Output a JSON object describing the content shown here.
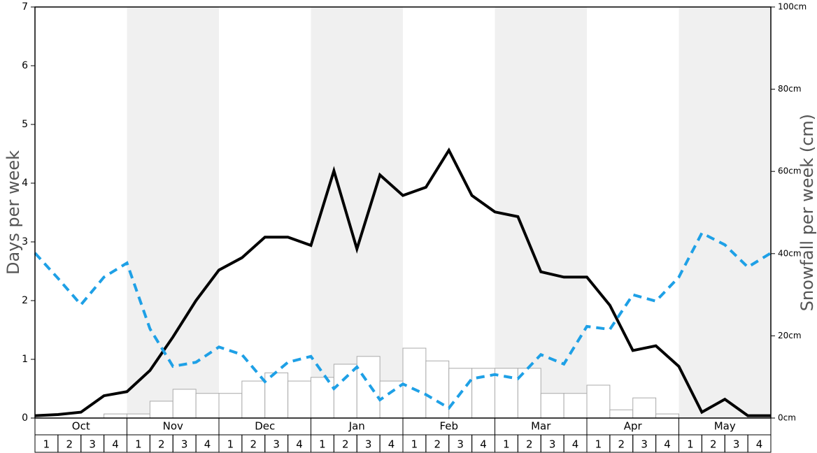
{
  "chart_data": {
    "type": "bar",
    "ylabel": "Days per week",
    "y2label": "Snowfall per week (cm)",
    "months": [
      "Oct",
      "Nov",
      "Dec",
      "Jan",
      "Feb",
      "Mar",
      "Apr",
      "May"
    ],
    "categories": [
      "1",
      "2",
      "3",
      "4",
      "1",
      "2",
      "3",
      "4",
      "1",
      "2",
      "3",
      "4",
      "1",
      "2",
      "3",
      "4",
      "1",
      "2",
      "3",
      "4",
      "1",
      "2",
      "3",
      "4",
      "1",
      "2",
      "3",
      "4",
      "1",
      "2",
      "3",
      "4"
    ],
    "x": [
      0,
      1,
      2,
      3,
      4,
      5,
      6,
      7,
      8,
      9,
      10,
      11,
      12,
      13,
      14,
      15,
      16,
      17,
      18,
      19,
      20,
      21,
      22,
      23,
      24,
      25,
      26,
      27,
      28,
      29,
      30,
      31,
      32
    ],
    "xlim": [
      0,
      32
    ],
    "ylim": [
      0,
      7
    ],
    "yticks": [
      0,
      1,
      2,
      3,
      4,
      5,
      6,
      7
    ],
    "y2lim": [
      0,
      100
    ],
    "y2ticks": [
      {
        "value": 0,
        "label": "0cm"
      },
      {
        "value": 20,
        "label": "20cm"
      },
      {
        "value": 40,
        "label": "40cm"
      },
      {
        "value": 60,
        "label": "60cm"
      },
      {
        "value": 80,
        "label": "80cm"
      },
      {
        "value": 100,
        "label": "100cm"
      }
    ],
    "shade_color": "#f0f0f0",
    "series": [
      {
        "type": "bar",
        "axis": "y2",
        "color": "#ffffff",
        "edge": "#aaaaaa",
        "values": [
          0,
          0,
          0,
          1.0,
          1.0,
          4.1,
          7.0,
          6.0,
          6.0,
          9.0,
          11.0,
          9.0,
          9.9,
          13.1,
          15.0,
          9.0,
          17.0,
          13.9,
          12.1,
          12.1,
          12.1,
          12.1,
          6.0,
          6.0,
          8.0,
          2.0,
          4.9,
          1.0,
          0,
          0,
          0,
          0
        ]
      },
      {
        "type": "line",
        "color": "#000000",
        "dashed": false,
        "values": [
          0.04,
          0.06,
          0.1,
          0.38,
          0.45,
          0.81,
          1.38,
          2.0,
          2.52,
          2.73,
          3.08,
          3.08,
          2.94,
          4.21,
          2.88,
          4.14,
          3.79,
          3.93,
          4.56,
          3.79,
          3.51,
          3.43,
          2.49,
          2.4,
          2.4,
          1.92,
          1.15,
          1.23,
          0.88,
          0.1,
          0.32,
          0.04,
          0.04
        ]
      },
      {
        "type": "line",
        "color": "#1ea0e6",
        "dashed": true,
        "values": [
          2.81,
          2.38,
          1.93,
          2.4,
          2.64,
          1.52,
          0.88,
          0.95,
          1.21,
          1.08,
          0.62,
          0.95,
          1.05,
          0.5,
          0.87,
          0.31,
          0.58,
          0.4,
          0.17,
          0.67,
          0.74,
          0.67,
          1.08,
          0.92,
          1.56,
          1.51,
          2.1,
          1.99,
          2.4,
          3.15,
          2.95,
          2.57,
          2.81
        ]
      }
    ]
  }
}
